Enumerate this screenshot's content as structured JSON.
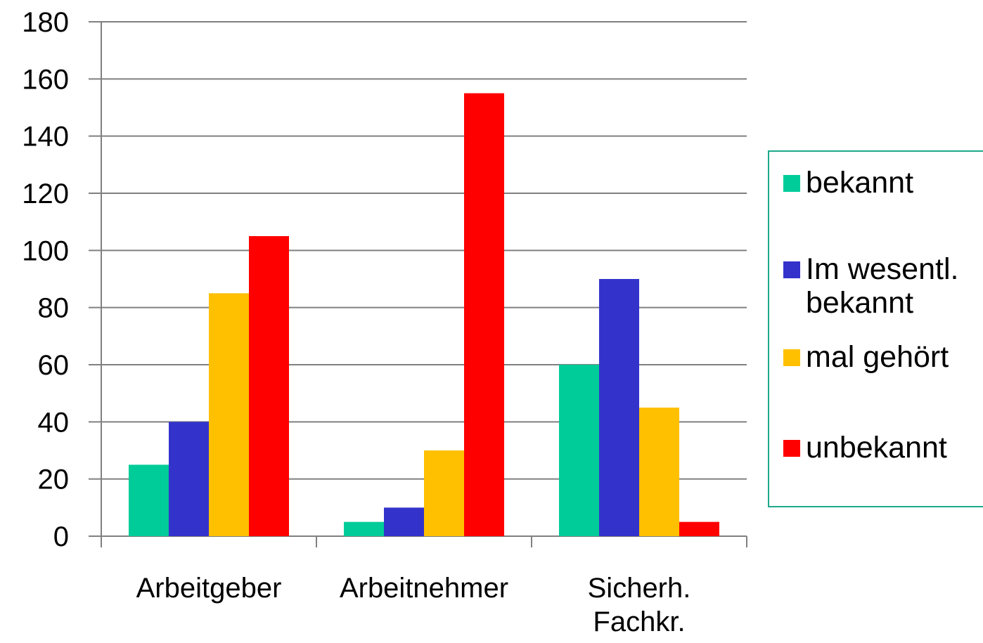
{
  "chart_data": {
    "type": "bar",
    "categories": [
      "Arbeitgeber",
      "Arbeitnehmer",
      "Sicherh.\nFachkr."
    ],
    "series": [
      {
        "name": "bekannt",
        "color": "#00cc99",
        "values": [
          25,
          5,
          60
        ]
      },
      {
        "name": "Im wesentl.\nbekannt",
        "color": "#3333cc",
        "values": [
          40,
          10,
          90
        ]
      },
      {
        "name": "mal gehört",
        "color": "#ffc000",
        "values": [
          85,
          30,
          45
        ]
      },
      {
        "name": "unbekannt",
        "color": "#ff0000",
        "values": [
          105,
          155,
          5
        ]
      }
    ],
    "title": "",
    "xlabel": "",
    "ylabel": "",
    "ylim": [
      0,
      180
    ],
    "yticks": [
      "0",
      "20",
      "40",
      "60",
      "80",
      "100",
      "120",
      "140",
      "160",
      "180"
    ],
    "grid": true,
    "legend_position": "right",
    "gridline_color": "#808080",
    "legend_border_color": "#1ca98a"
  }
}
